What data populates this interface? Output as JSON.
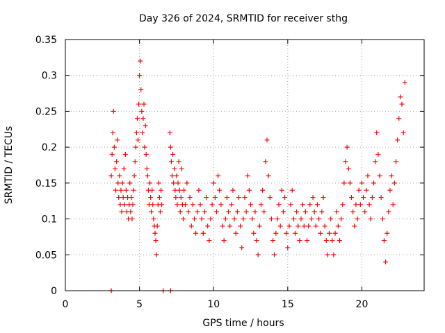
{
  "chart_data": {
    "type": "scatter",
    "title": "Day 326 of 2024, SRMTID for receiver sthg",
    "xlabel": "GPS time / hours",
    "ylabel": "SRMTID / TECUs",
    "xlim": [
      0,
      24.2
    ],
    "ylim": [
      0,
      0.35
    ],
    "x_ticks": [
      0,
      5,
      10,
      15,
      20
    ],
    "y_ticks": [
      0,
      0.05,
      0.1,
      0.15,
      0.2,
      0.25,
      0.3,
      0.35
    ],
    "x_tick_labels": [
      "0",
      "5",
      "10",
      "15",
      "20"
    ],
    "y_tick_labels": [
      "0",
      "0.05",
      "0.1",
      "0.15",
      "0.2",
      "0.25",
      "0.3",
      "0.35"
    ],
    "grid": true,
    "marker": "+",
    "color": "#ff0000",
    "series": [
      {
        "name": "SRMTID",
        "points": [
          [
            3.1,
            0.16
          ],
          [
            3.15,
            0.19
          ],
          [
            3.2,
            0.22
          ],
          [
            3.25,
            0.25
          ],
          [
            3.3,
            0.2
          ],
          [
            3.35,
            0.17
          ],
          [
            3.4,
            0.14
          ],
          [
            3.45,
            0.18
          ],
          [
            3.5,
            0.21
          ],
          [
            3.55,
            0.15
          ],
          [
            3.6,
            0.13
          ],
          [
            3.65,
            0.16
          ],
          [
            3.7,
            0.12
          ],
          [
            3.75,
            0.14
          ],
          [
            3.8,
            0.11
          ],
          [
            3.85,
            0.15
          ],
          [
            3.9,
            0.13
          ],
          [
            3.95,
            0.17
          ],
          [
            4.0,
            0.12
          ],
          [
            4.05,
            0.19
          ],
          [
            4.1,
            0.14
          ],
          [
            4.15,
            0.11
          ],
          [
            4.2,
            0.13
          ],
          [
            4.25,
            0.1
          ],
          [
            4.3,
            0.12
          ],
          [
            4.35,
            0.15
          ],
          [
            4.4,
            0.11
          ],
          [
            4.45,
            0.13
          ],
          [
            4.5,
            0.1
          ],
          [
            4.55,
            0.12
          ],
          [
            4.6,
            0.14
          ],
          [
            4.65,
            0.16
          ],
          [
            4.7,
            0.18
          ],
          [
            4.75,
            0.2
          ],
          [
            4.8,
            0.22
          ],
          [
            4.85,
            0.24
          ],
          [
            4.9,
            0.21
          ],
          [
            4.95,
            0.26
          ],
          [
            5.0,
            0.3
          ],
          [
            5.05,
            0.32
          ],
          [
            5.1,
            0.28
          ],
          [
            5.15,
            0.25
          ],
          [
            5.2,
            0.22
          ],
          [
            5.25,
            0.24
          ],
          [
            5.3,
            0.26
          ],
          [
            5.35,
            0.2
          ],
          [
            5.4,
            0.23
          ],
          [
            5.45,
            0.19
          ],
          [
            5.5,
            0.17
          ],
          [
            5.55,
            0.16
          ],
          [
            5.6,
            0.14
          ],
          [
            5.65,
            0.12
          ],
          [
            5.7,
            0.15
          ],
          [
            5.75,
            0.13
          ],
          [
            5.8,
            0.11
          ],
          [
            5.85,
            0.14
          ],
          [
            5.9,
            0.12
          ],
          [
            5.95,
            0.1
          ],
          [
            6.0,
            0.09
          ],
          [
            6.05,
            0.08
          ],
          [
            6.1,
            0.07
          ],
          [
            6.15,
            0.05
          ],
          [
            6.2,
            0.09
          ],
          [
            6.25,
            0.12
          ],
          [
            6.3,
            0.15
          ],
          [
            6.35,
            0.13
          ],
          [
            6.4,
            0.11
          ],
          [
            6.45,
            0.14
          ],
          [
            6.5,
            0.12
          ],
          [
            7.05,
            0.22
          ],
          [
            7.1,
            0.2
          ],
          [
            7.15,
            0.18
          ],
          [
            7.2,
            0.16
          ],
          [
            7.25,
            0.19
          ],
          [
            7.3,
            0.15
          ],
          [
            7.35,
            0.17
          ],
          [
            7.4,
            0.14
          ],
          [
            7.45,
            0.13
          ],
          [
            7.5,
            0.16
          ],
          [
            7.55,
            0.12
          ],
          [
            7.6,
            0.15
          ],
          [
            7.65,
            0.18
          ],
          [
            7.7,
            0.14
          ],
          [
            7.75,
            0.11
          ],
          [
            7.8,
            0.13
          ],
          [
            7.85,
            0.17
          ],
          [
            7.9,
            0.12
          ],
          [
            7.95,
            0.1
          ],
          [
            8.0,
            0.14
          ],
          [
            8.1,
            0.12
          ],
          [
            8.2,
            0.15
          ],
          [
            8.3,
            0.11
          ],
          [
            8.4,
            0.13
          ],
          [
            8.5,
            0.09
          ],
          [
            8.6,
            0.12
          ],
          [
            8.7,
            0.1
          ],
          [
            8.8,
            0.08
          ],
          [
            8.9,
            0.11
          ],
          [
            9.0,
            0.14
          ],
          [
            9.1,
            0.12
          ],
          [
            9.2,
            0.1
          ],
          [
            9.3,
            0.08
          ],
          [
            9.4,
            0.11
          ],
          [
            9.5,
            0.13
          ],
          [
            9.6,
            0.09
          ],
          [
            9.7,
            0.07
          ],
          [
            9.8,
            0.1
          ],
          [
            9.9,
            0.12
          ],
          [
            10.0,
            0.15
          ],
          [
            10.1,
            0.13
          ],
          [
            10.2,
            0.11
          ],
          [
            10.3,
            0.16
          ],
          [
            10.4,
            0.14
          ],
          [
            10.5,
            0.12
          ],
          [
            10.6,
            0.09
          ],
          [
            10.7,
            0.07
          ],
          [
            10.8,
            0.1
          ],
          [
            10.9,
            0.13
          ],
          [
            11.0,
            0.11
          ],
          [
            11.1,
            0.09
          ],
          [
            11.2,
            0.12
          ],
          [
            11.3,
            0.14
          ],
          [
            11.4,
            0.1
          ],
          [
            11.5,
            0.08
          ],
          [
            11.6,
            0.11
          ],
          [
            11.7,
            0.13
          ],
          [
            11.8,
            0.09
          ],
          [
            11.9,
            0.06
          ],
          [
            12.0,
            0.1
          ],
          [
            12.1,
            0.13
          ],
          [
            12.2,
            0.11
          ],
          [
            12.3,
            0.16
          ],
          [
            12.4,
            0.14
          ],
          [
            12.5,
            0.12
          ],
          [
            12.6,
            0.1
          ],
          [
            12.7,
            0.08
          ],
          [
            12.8,
            0.11
          ],
          [
            12.9,
            0.07
          ],
          [
            13.0,
            0.05
          ],
          [
            13.1,
            0.09
          ],
          [
            13.2,
            0.12
          ],
          [
            13.3,
            0.14
          ],
          [
            13.4,
            0.11
          ],
          [
            13.5,
            0.18
          ],
          [
            13.6,
            0.21
          ],
          [
            13.7,
            0.16
          ],
          [
            13.8,
            0.13
          ],
          [
            13.9,
            0.1
          ],
          [
            14.0,
            0.07
          ],
          [
            14.1,
            0.05
          ],
          [
            14.2,
            0.08
          ],
          [
            14.3,
            0.1
          ],
          [
            14.4,
            0.12
          ],
          [
            14.5,
            0.09
          ],
          [
            14.6,
            0.14
          ],
          [
            14.7,
            0.11
          ],
          [
            14.8,
            0.13
          ],
          [
            14.9,
            0.08
          ],
          [
            15.0,
            0.06
          ],
          [
            15.1,
            0.09
          ],
          [
            15.2,
            0.12
          ],
          [
            15.3,
            0.14
          ],
          [
            15.4,
            0.1
          ],
          [
            15.5,
            0.08
          ],
          [
            15.6,
            0.11
          ],
          [
            15.7,
            0.09
          ],
          [
            15.8,
            0.07
          ],
          [
            15.9,
            0.1
          ],
          [
            16.0,
            0.12
          ],
          [
            16.1,
            0.09
          ],
          [
            16.2,
            0.11
          ],
          [
            16.3,
            0.07
          ],
          [
            16.4,
            0.09
          ],
          [
            16.5,
            0.12
          ],
          [
            16.6,
            0.1
          ],
          [
            16.7,
            0.13
          ],
          [
            16.8,
            0.11
          ],
          [
            16.9,
            0.09
          ],
          [
            17.0,
            0.12
          ],
          [
            17.1,
            0.1
          ],
          [
            17.2,
            0.08
          ],
          [
            17.3,
            0.11
          ],
          [
            17.4,
            0.13
          ],
          [
            17.5,
            0.09
          ],
          [
            17.6,
            0.07
          ],
          [
            17.7,
            0.05
          ],
          [
            17.8,
            0.08
          ],
          [
            17.9,
            0.1
          ],
          [
            18.0,
            0.07
          ],
          [
            18.1,
            0.05
          ],
          [
            18.2,
            0.08
          ],
          [
            18.3,
            0.11
          ],
          [
            18.4,
            0.09
          ],
          [
            18.5,
            0.07
          ],
          [
            18.6,
            0.1
          ],
          [
            18.7,
            0.12
          ],
          [
            18.8,
            0.15
          ],
          [
            18.9,
            0.18
          ],
          [
            19.0,
            0.2
          ],
          [
            19.1,
            0.17
          ],
          [
            19.2,
            0.15
          ],
          [
            19.3,
            0.13
          ],
          [
            19.4,
            0.11
          ],
          [
            19.5,
            0.09
          ],
          [
            19.6,
            0.12
          ],
          [
            19.7,
            0.1
          ],
          [
            19.8,
            0.14
          ],
          [
            19.9,
            0.12
          ],
          [
            20.0,
            0.15
          ],
          [
            20.1,
            0.13
          ],
          [
            20.2,
            0.11
          ],
          [
            20.3,
            0.14
          ],
          [
            20.4,
            0.16
          ],
          [
            20.5,
            0.12
          ],
          [
            20.6,
            0.1
          ],
          [
            20.7,
            0.13
          ],
          [
            20.8,
            0.15
          ],
          [
            20.9,
            0.18
          ],
          [
            21.0,
            0.22
          ],
          [
            21.1,
            0.19
          ],
          [
            21.2,
            0.16
          ],
          [
            21.3,
            0.13
          ],
          [
            21.4,
            0.1
          ],
          [
            21.5,
            0.07
          ],
          [
            21.6,
            0.04
          ],
          [
            21.7,
            0.08
          ],
          [
            21.8,
            0.11
          ],
          [
            21.9,
            0.14
          ],
          [
            22.0,
            0.16
          ],
          [
            22.1,
            0.12
          ],
          [
            22.2,
            0.15
          ],
          [
            22.3,
            0.18
          ],
          [
            22.4,
            0.21
          ],
          [
            22.5,
            0.24
          ],
          [
            22.6,
            0.27
          ],
          [
            22.7,
            0.26
          ],
          [
            22.8,
            0.22
          ],
          [
            22.9,
            0.29
          ],
          [
            3.1,
            0.0
          ],
          [
            6.6,
            0.0
          ],
          [
            7.1,
            0.0
          ]
        ]
      }
    ]
  }
}
